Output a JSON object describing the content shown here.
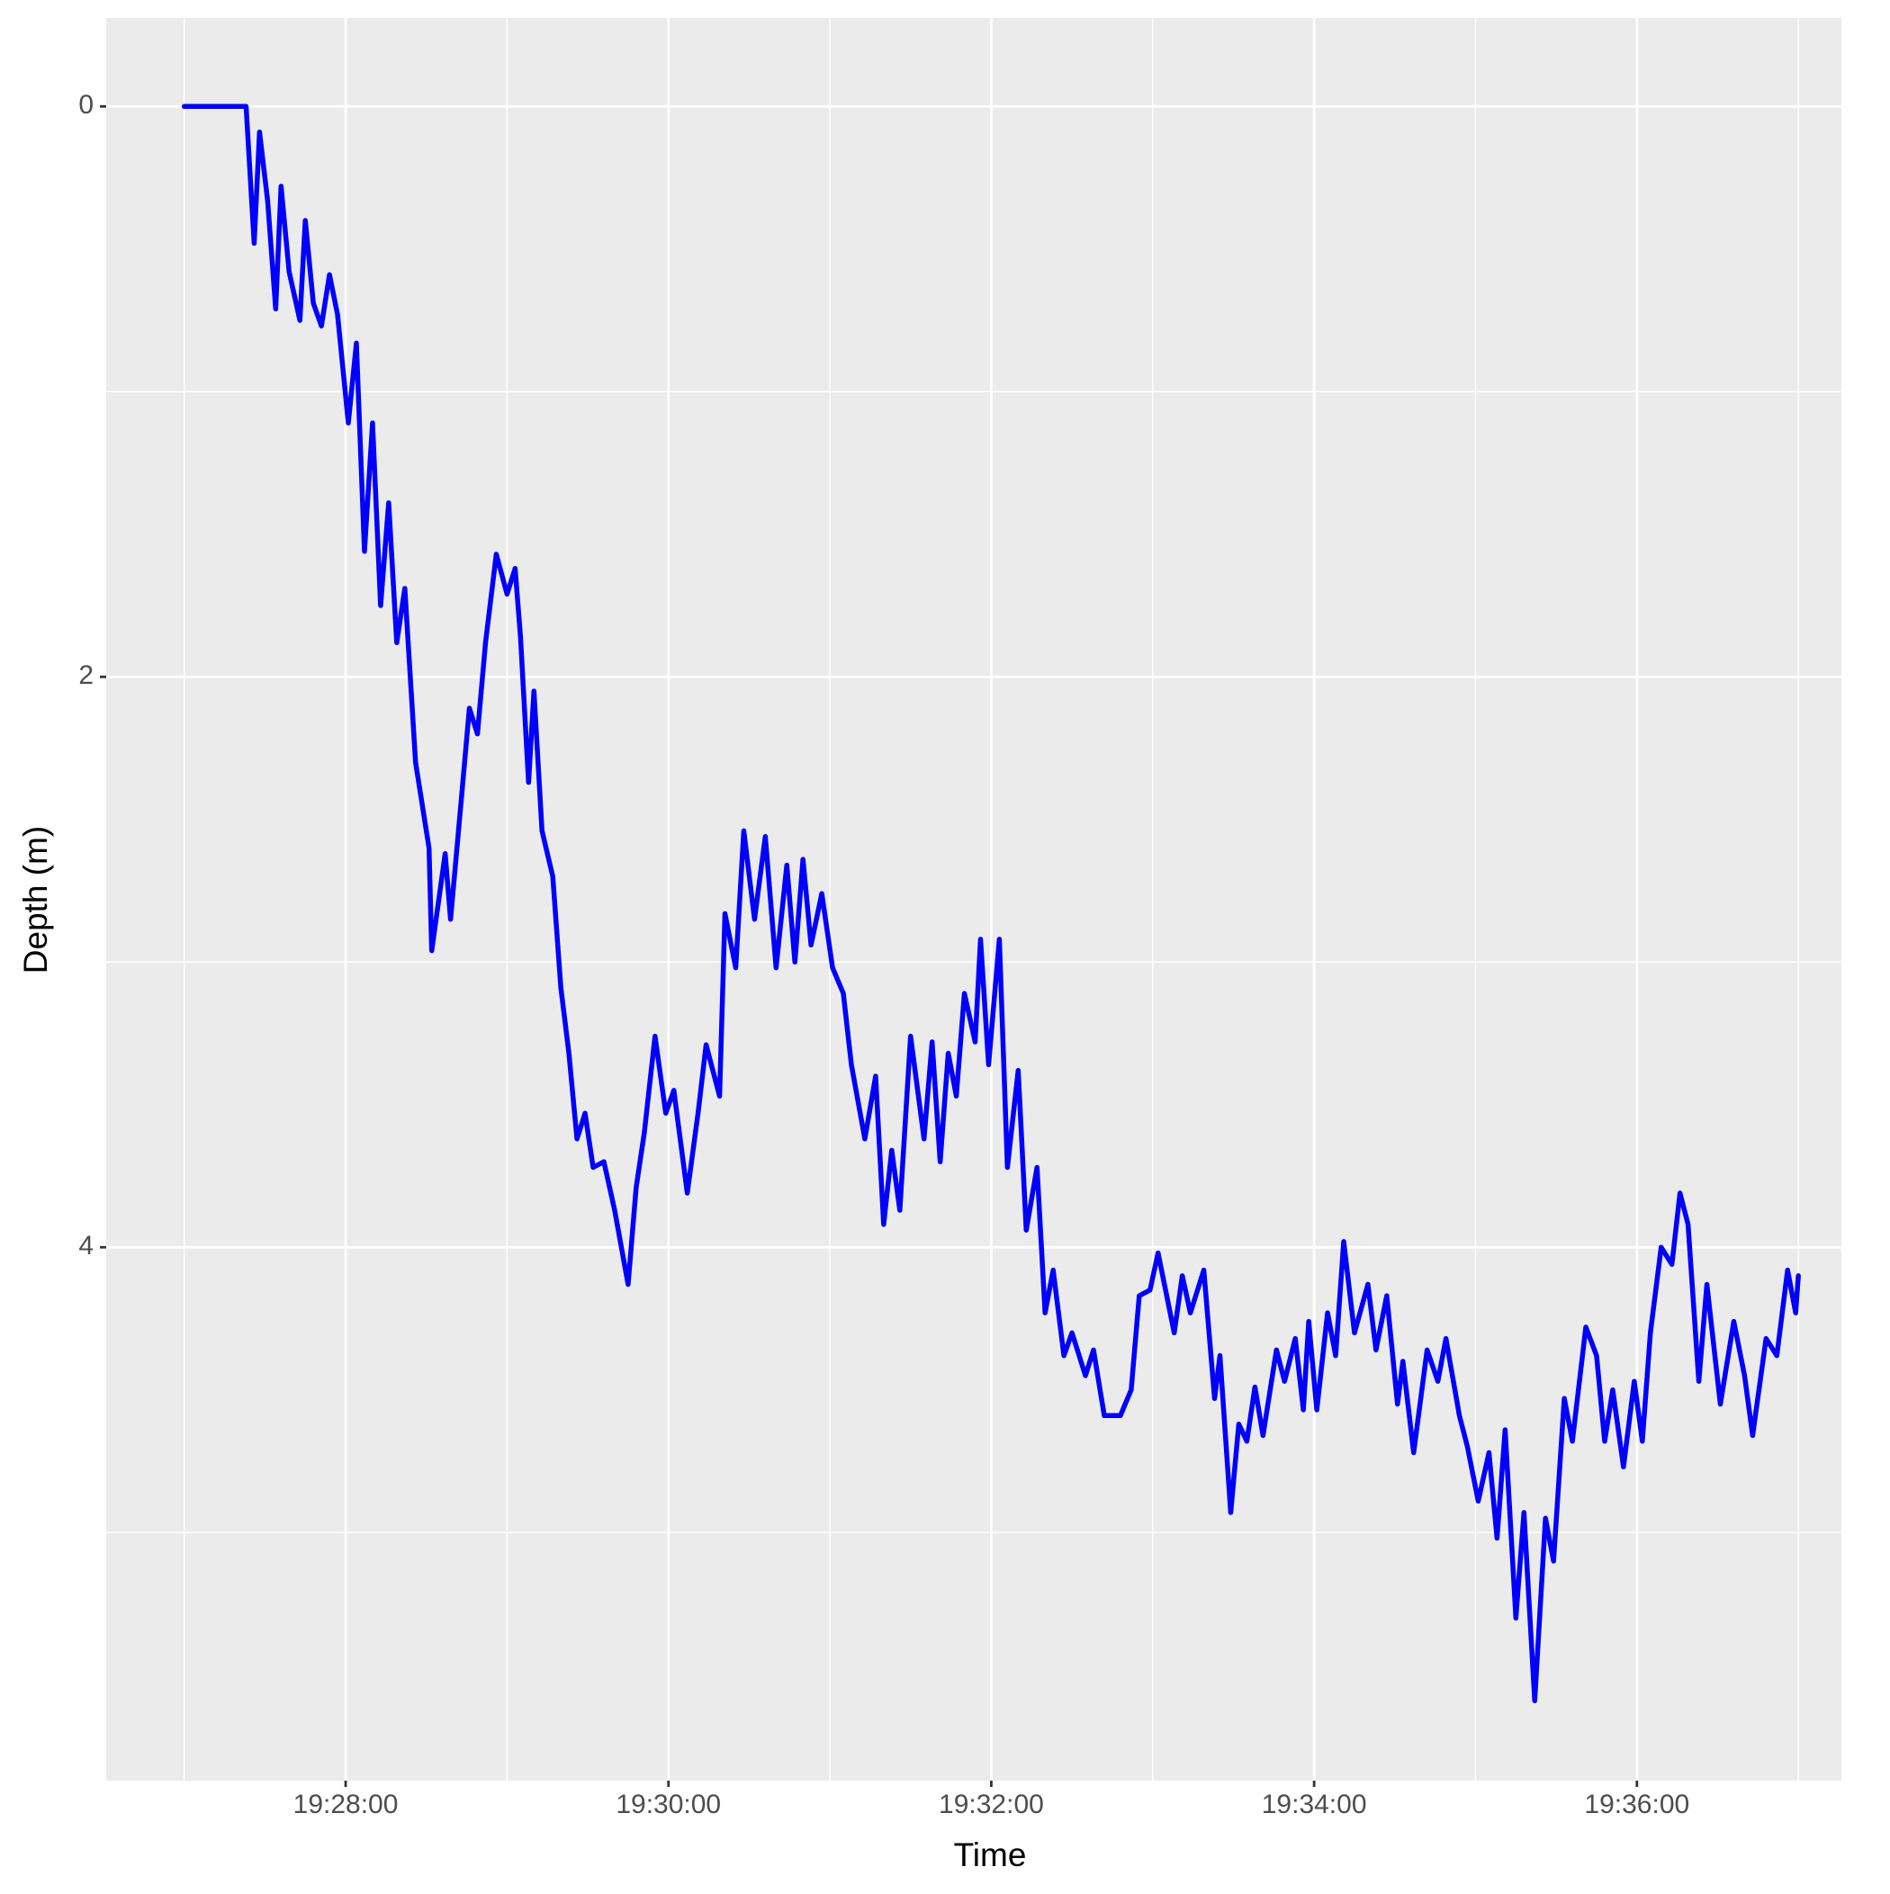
{
  "chart_data": {
    "type": "line",
    "x_label": "Time",
    "y_label": "Depth (m)",
    "xlim": [
      "19:26:31",
      "19:37:16"
    ],
    "xticks": [
      "19:28:00",
      "19:30:00",
      "19:32:00",
      "19:34:00",
      "19:36:00"
    ],
    "minor_xticks": [
      "19:27:00",
      "19:29:00",
      "19:31:00",
      "19:33:00",
      "19:35:00",
      "19:37:00"
    ],
    "ylim": [
      -0.31,
      5.87
    ],
    "y_reversed": true,
    "yticks": [
      0,
      2,
      4
    ],
    "minor_yticks": [
      1,
      3,
      5
    ],
    "grid": true,
    "series": [
      {
        "name": "Depth",
        "color": "#0000ff",
        "x": [
          "19:27:00",
          "19:27:23",
          "19:27:26",
          "19:27:28",
          "19:27:31",
          "19:27:34",
          "19:27:36",
          "19:27:39",
          "19:27:43",
          "19:27:45",
          "19:27:48",
          "19:27:51",
          "19:27:54",
          "19:27:57",
          "19:28:01",
          "19:28:04",
          "19:28:07",
          "19:28:10",
          "19:28:13",
          "19:28:16",
          "19:28:19",
          "19:28:22",
          "19:28:26",
          "19:28:31",
          "19:28:32",
          "19:28:37",
          "19:28:39",
          "19:28:43",
          "19:28:46",
          "19:28:49",
          "19:28:52",
          "19:28:56",
          "19:29:00",
          "19:29:03",
          "19:29:05",
          "19:29:08",
          "19:29:10",
          "19:29:13",
          "19:29:17",
          "19:29:20",
          "19:29:23",
          "19:29:26",
          "19:29:29",
          "19:29:32",
          "19:29:36",
          "19:29:40",
          "19:29:45",
          "19:29:48",
          "19:29:51",
          "19:29:55",
          "19:29:59",
          "19:30:02",
          "19:30:07",
          "19:30:11",
          "19:30:14",
          "19:30:19",
          "19:30:21",
          "19:30:25",
          "19:30:28",
          "19:30:32",
          "19:30:36",
          "19:30:40",
          "19:30:44",
          "19:30:47",
          "19:30:50",
          "19:30:53",
          "19:30:57",
          "19:31:01",
          "19:31:05",
          "19:31:08",
          "19:31:13",
          "19:31:17",
          "19:31:20",
          "19:31:23",
          "19:31:26",
          "19:31:30",
          "19:31:35",
          "19:31:38",
          "19:31:41",
          "19:31:44",
          "19:31:47",
          "19:31:50",
          "19:31:54",
          "19:31:56",
          "19:31:59",
          "19:32:03",
          "19:32:06",
          "19:32:10",
          "19:32:13",
          "19:32:17",
          "19:32:20",
          "19:32:23",
          "19:32:27",
          "19:32:30",
          "19:32:35",
          "19:32:38",
          "19:32:42",
          "19:32:48",
          "19:32:52",
          "19:32:55",
          "19:32:59",
          "19:33:02",
          "19:33:08",
          "19:33:11",
          "19:33:14",
          "19:33:19",
          "19:33:23",
          "19:33:25",
          "19:33:29",
          "19:33:32",
          "19:33:35",
          "19:33:38",
          "19:33:41",
          "19:33:46",
          "19:33:49",
          "19:33:53",
          "19:33:56",
          "19:33:58",
          "19:34:01",
          "19:34:05",
          "19:34:08",
          "19:34:11",
          "19:34:15",
          "19:34:20",
          "19:34:23",
          "19:34:27",
          "19:34:31",
          "19:34:33",
          "19:34:37",
          "19:34:42",
          "19:34:46",
          "19:34:49",
          "19:34:54",
          "19:34:57",
          "19:35:01",
          "19:35:05",
          "19:35:08",
          "19:35:11",
          "19:35:15",
          "19:35:18",
          "19:35:22",
          "19:35:26",
          "19:35:29",
          "19:35:33",
          "19:35:36",
          "19:35:41",
          "19:35:45",
          "19:35:48",
          "19:35:51",
          "19:35:55",
          "19:35:59",
          "19:36:02",
          "19:36:05",
          "19:36:09",
          "19:36:13",
          "19:36:16",
          "19:36:19",
          "19:36:23",
          "19:36:26",
          "19:36:31",
          "19:36:36",
          "19:36:40",
          "19:36:43",
          "19:36:48",
          "19:36:52",
          "19:36:56",
          "19:36:59",
          "19:37:00"
        ],
        "values": [
          0,
          0,
          0.48,
          0.09,
          0.33,
          0.71,
          0.28,
          0.58,
          0.75,
          0.4,
          0.69,
          0.77,
          0.59,
          0.73,
          1.11,
          0.83,
          1.56,
          1.11,
          1.75,
          1.39,
          1.88,
          1.69,
          2.3,
          2.6,
          2.96,
          2.62,
          2.85,
          2.43,
          2.11,
          2.2,
          1.88,
          1.57,
          1.71,
          1.62,
          1.86,
          2.37,
          2.05,
          2.54,
          2.7,
          3.09,
          3.32,
          3.62,
          3.53,
          3.72,
          3.7,
          3.87,
          4.13,
          3.79,
          3.6,
          3.26,
          3.53,
          3.45,
          3.81,
          3.53,
          3.29,
          3.47,
          2.83,
          3.02,
          2.54,
          2.85,
          2.56,
          3.02,
          2.66,
          3.0,
          2.64,
          2.94,
          2.76,
          3.02,
          3.11,
          3.36,
          3.62,
          3.4,
          3.92,
          3.66,
          3.87,
          3.26,
          3.62,
          3.28,
          3.7,
          3.32,
          3.47,
          3.11,
          3.28,
          2.92,
          3.36,
          2.92,
          3.72,
          3.38,
          3.94,
          3.72,
          4.23,
          4.08,
          4.38,
          4.3,
          4.45,
          4.36,
          4.59,
          4.59,
          4.5,
          4.17,
          4.15,
          4.02,
          4.3,
          4.1,
          4.23,
          4.08,
          4.53,
          4.38,
          4.93,
          4.62,
          4.68,
          4.49,
          4.66,
          4.36,
          4.47,
          4.32,
          4.57,
          4.26,
          4.57,
          4.23,
          4.38,
          3.98,
          4.3,
          4.13,
          4.36,
          4.17,
          4.55,
          4.4,
          4.72,
          4.36,
          4.47,
          4.32,
          4.59,
          4.7,
          4.89,
          4.72,
          5.02,
          4.64,
          5.3,
          4.93,
          5.59,
          4.95,
          5.1,
          4.53,
          4.68,
          4.28,
          4.38,
          4.68,
          4.5,
          4.77,
          4.47,
          4.68,
          4.3,
          4.0,
          4.06,
          3.81,
          3.92,
          4.47,
          4.13,
          4.55,
          4.26,
          4.45,
          4.66,
          4.32,
          4.38,
          4.08,
          4.23,
          4.1
        ]
      }
    ]
  }
}
